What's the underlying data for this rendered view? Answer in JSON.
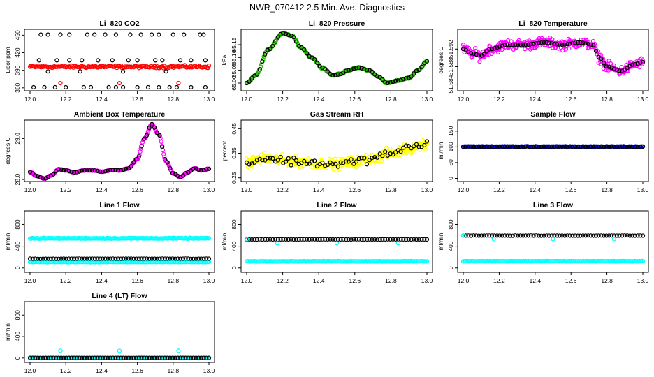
{
  "figure": {
    "title": "NWR_070412  2.5 Min. Ave. Diagnostics"
  },
  "colors": {
    "black": "#000000",
    "red": "#ff0000",
    "green": "#22bb00",
    "magenta": "#ff00ff",
    "yellow": "#ffff00",
    "blue": "#0000cc",
    "cyan": "#00ffff"
  },
  "chart_data": [
    {
      "type": "scatter",
      "title": "Li–820 CO2",
      "ylabel": "Licor ppm",
      "xlim": [
        12.0,
        13.0
      ],
      "ylim": [
        355,
        460
      ],
      "xticks": [
        "12.0",
        "12.2",
        "12.4",
        "12.6",
        "12.8",
        "13.0"
      ],
      "yticks": [
        {
          "v": 360,
          "label": "360"
        },
        {
          "v": 390,
          "label": "390"
        },
        {
          "v": 420,
          "label": "420"
        },
        {
          "v": 450,
          "label": "450"
        }
      ],
      "series": [
        {
          "color": "red",
          "style": "band",
          "base": 396,
          "noise": 3,
          "amp": 0,
          "n": 170
        },
        {
          "color": "black",
          "style": "markers",
          "points": [
            [
              12.06,
              451
            ],
            [
              12.1,
              451
            ],
            [
              12.17,
              451
            ],
            [
              12.22,
              451
            ],
            [
              12.32,
              451
            ],
            [
              12.36,
              451
            ],
            [
              12.42,
              451
            ],
            [
              12.48,
              451
            ],
            [
              12.56,
              451
            ],
            [
              12.62,
              451
            ],
            [
              12.68,
              451
            ],
            [
              12.72,
              451
            ],
            [
              12.8,
              451
            ],
            [
              12.86,
              451
            ],
            [
              12.95,
              451
            ],
            [
              12.97,
              451
            ],
            [
              12.02,
              361
            ],
            [
              12.08,
              361
            ],
            [
              12.14,
              361
            ],
            [
              12.2,
              361
            ],
            [
              12.3,
              361
            ],
            [
              12.34,
              361
            ],
            [
              12.44,
              361
            ],
            [
              12.48,
              361
            ],
            [
              12.52,
              361
            ],
            [
              12.6,
              361
            ],
            [
              12.66,
              361
            ],
            [
              12.72,
              361
            ],
            [
              12.78,
              361
            ],
            [
              12.82,
              361
            ],
            [
              12.9,
              361
            ],
            [
              12.98,
              361
            ],
            [
              12.05,
              407
            ],
            [
              12.15,
              407
            ],
            [
              12.22,
              407
            ],
            [
              12.29,
              407
            ],
            [
              12.38,
              407
            ],
            [
              12.46,
              407
            ],
            [
              12.55,
              407
            ],
            [
              12.6,
              407
            ],
            [
              12.7,
              407
            ],
            [
              12.74,
              407
            ],
            [
              12.84,
              407
            ],
            [
              12.9,
              407
            ],
            [
              12.98,
              407
            ],
            [
              12.1,
              388
            ],
            [
              12.28,
              388
            ],
            [
              12.52,
              388
            ],
            [
              12.76,
              388
            ]
          ]
        },
        {
          "color": "red",
          "style": "markers",
          "points": [
            [
              12.17,
              368
            ],
            [
              12.5,
              368
            ],
            [
              12.83,
              368
            ]
          ]
        }
      ]
    },
    {
      "type": "scatter",
      "title": "Li–820 Pressure",
      "ylabel": "kPa",
      "xlim": [
        12.0,
        13.0
      ],
      "ylim": [
        64.97,
        65.21
      ],
      "xticks": [
        "12.0",
        "12.2",
        "12.4",
        "12.6",
        "12.8",
        "13.0"
      ],
      "yticks": [
        {
          "v": 65.0,
          "label": "65.00"
        },
        {
          "v": 65.05,
          "label": "65.05"
        },
        {
          "v": 65.1,
          "label": "65.10"
        },
        {
          "v": 65.15,
          "label": "65.15"
        }
      ],
      "series": [
        {
          "color": "green",
          "style": "curve",
          "noise": 0.004,
          "n": 220,
          "knots": [
            [
              12.0,
              65.0
            ],
            [
              12.05,
              65.03
            ],
            [
              12.12,
              65.13
            ],
            [
              12.2,
              65.195
            ],
            [
              12.25,
              65.185
            ],
            [
              12.3,
              65.14
            ],
            [
              12.36,
              65.1
            ],
            [
              12.42,
              65.06
            ],
            [
              12.48,
              65.03
            ],
            [
              12.52,
              65.035
            ],
            [
              12.56,
              65.05
            ],
            [
              12.62,
              65.06
            ],
            [
              12.68,
              65.05
            ],
            [
              12.73,
              65.025
            ],
            [
              12.78,
              65.0
            ],
            [
              12.84,
              65.01
            ],
            [
              12.9,
              65.02
            ],
            [
              12.95,
              65.05
            ],
            [
              13.0,
              65.085
            ]
          ]
        },
        {
          "color": "black",
          "style": "onCurve",
          "n": 70
        }
      ]
    },
    {
      "type": "scatter",
      "title": "Li–820 Temperature",
      "ylabel": "degrees C",
      "xlim": [
        12.0,
        13.0
      ],
      "ylim": [
        51.5825,
        51.5965
      ],
      "xticks": [
        "12.0",
        "12.2",
        "12.4",
        "12.6",
        "12.8",
        "13.0"
      ],
      "yticks": [
        {
          "v": 51.584,
          "label": "51.584"
        },
        {
          "v": 51.588,
          "label": "51.588"
        },
        {
          "v": 51.592,
          "label": "51.592"
        }
      ],
      "series": [
        {
          "color": "magenta",
          "style": "curve",
          "noise": 0.0016,
          "n": 330,
          "knots": [
            [
              12.0,
              51.592
            ],
            [
              12.05,
              51.591
            ],
            [
              12.1,
              51.5905
            ],
            [
              12.15,
              51.592
            ],
            [
              12.25,
              51.593
            ],
            [
              12.35,
              51.593
            ],
            [
              12.45,
              51.5935
            ],
            [
              12.55,
              51.593
            ],
            [
              12.65,
              51.5935
            ],
            [
              12.72,
              51.593
            ],
            [
              12.76,
              51.59
            ],
            [
              12.8,
              51.588
            ],
            [
              12.88,
              51.587
            ],
            [
              12.95,
              51.5885
            ],
            [
              13.0,
              51.589
            ]
          ]
        },
        {
          "color": "black",
          "style": "onCurve",
          "n": 70
        }
      ]
    },
    {
      "type": "scatter",
      "title": "Ambient Box Temperature",
      "ylabel": "degrees C",
      "xlim": [
        12.0,
        13.0
      ],
      "ylim": [
        27.95,
        29.45
      ],
      "xticks": [
        "12.0",
        "12.2",
        "12.4",
        "12.6",
        "12.8",
        "13.0"
      ],
      "yticks": [
        {
          "v": 28.0,
          "label": "28.0"
        },
        {
          "v": 29.0,
          "label": "29.0"
        }
      ],
      "series": [
        {
          "color": "magenta",
          "style": "curve",
          "noise": 0.012,
          "n": 230,
          "knots": [
            [
              12.0,
              28.18
            ],
            [
              12.04,
              28.08
            ],
            [
              12.08,
              28.02
            ],
            [
              12.12,
              28.1
            ],
            [
              12.16,
              28.25
            ],
            [
              12.2,
              28.22
            ],
            [
              12.25,
              28.17
            ],
            [
              12.3,
              28.22
            ],
            [
              12.36,
              28.22
            ],
            [
              12.4,
              28.19
            ],
            [
              12.46,
              28.23
            ],
            [
              12.5,
              28.22
            ],
            [
              12.55,
              28.27
            ],
            [
              12.6,
              28.5
            ],
            [
              12.64,
              29.0
            ],
            [
              12.68,
              29.35
            ],
            [
              12.72,
              29.1
            ],
            [
              12.76,
              28.45
            ],
            [
              12.8,
              28.15
            ],
            [
              12.84,
              28.06
            ],
            [
              12.88,
              28.17
            ],
            [
              12.92,
              28.27
            ],
            [
              12.96,
              28.22
            ],
            [
              13.0,
              28.26
            ]
          ]
        },
        {
          "color": "black",
          "style": "onCurve",
          "n": 70
        }
      ]
    },
    {
      "type": "scatter",
      "title": "Gas Stream RH",
      "ylabel": "percent",
      "xlim": [
        12.0,
        13.0
      ],
      "ylim": [
        0.235,
        0.485
      ],
      "xticks": [
        "12.0",
        "12.2",
        "12.4",
        "12.6",
        "12.8",
        "13.0"
      ],
      "yticks": [
        {
          "v": 0.25,
          "label": "0.25"
        },
        {
          "v": 0.35,
          "label": "0.35"
        },
        {
          "v": 0.45,
          "label": "0.45"
        }
      ],
      "series": [
        {
          "color": "yellow",
          "style": "curve",
          "noise": 0.03,
          "n": 300,
          "knots": [
            [
              12.0,
              0.31
            ],
            [
              12.1,
              0.33
            ],
            [
              12.2,
              0.32
            ],
            [
              12.3,
              0.315
            ],
            [
              12.4,
              0.31
            ],
            [
              12.5,
              0.305
            ],
            [
              12.6,
              0.315
            ],
            [
              12.7,
              0.33
            ],
            [
              12.8,
              0.35
            ],
            [
              12.9,
              0.37
            ],
            [
              13.0,
              0.39
            ]
          ]
        },
        {
          "color": "black",
          "style": "onCurve",
          "n": 70,
          "noise": 0.025
        }
      ]
    },
    {
      "type": "scatter",
      "title": "Sample Flow",
      "ylabel": "ml/min",
      "xlim": [
        12.0,
        13.0
      ],
      "ylim": [
        -10,
        185
      ],
      "xticks": [
        "12.0",
        "12.2",
        "12.4",
        "12.6",
        "12.8",
        "13.0"
      ],
      "yticks": [
        {
          "v": 0,
          "label": "0"
        },
        {
          "v": 50,
          "label": "50"
        },
        {
          "v": 100,
          "label": "100"
        },
        {
          "v": 150,
          "label": "150"
        }
      ],
      "series": [
        {
          "color": "blue",
          "style": "band",
          "base": 101,
          "noise": 1.5,
          "n": 170
        },
        {
          "color": "black",
          "style": "band",
          "base": 101,
          "noise": 1.2,
          "n": 70
        }
      ]
    },
    {
      "type": "scatter",
      "title": "Line 1 Flow",
      "ylabel": "ml/min",
      "xlim": [
        12.0,
        13.0
      ],
      "ylim": [
        -80,
        1050
      ],
      "xticks": [
        "12.0",
        "12.2",
        "12.4",
        "12.6",
        "12.8",
        "13.0"
      ],
      "yticks": [
        {
          "v": 0,
          "label": "0"
        },
        {
          "v": 400,
          "label": "400"
        },
        {
          "v": 800,
          "label": "800"
        }
      ],
      "series": [
        {
          "color": "cyan",
          "style": "band",
          "base": 545,
          "noise": 12,
          "n": 170
        },
        {
          "color": "cyan",
          "style": "band",
          "base": 110,
          "noise": 6,
          "n": 150
        },
        {
          "color": "black",
          "style": "band",
          "base": 170,
          "noise": 4,
          "n": 70
        }
      ]
    },
    {
      "type": "scatter",
      "title": "Line 2 Flow",
      "ylabel": "ml/min",
      "xlim": [
        12.0,
        13.0
      ],
      "ylim": [
        -80,
        1050
      ],
      "xticks": [
        "12.0",
        "12.2",
        "12.4",
        "12.6",
        "12.8",
        "13.0"
      ],
      "yticks": [
        {
          "v": 0,
          "label": "0"
        },
        {
          "v": 400,
          "label": "400"
        },
        {
          "v": 800,
          "label": "800"
        }
      ],
      "series": [
        {
          "color": "cyan",
          "style": "band",
          "base": 122,
          "noise": 5,
          "n": 170
        },
        {
          "color": "black",
          "style": "band",
          "base": 525,
          "noise": 4,
          "n": 70
        },
        {
          "color": "cyan",
          "style": "markers",
          "points": [
            [
              12.0,
              530
            ],
            [
              12.17,
              455
            ],
            [
              12.5,
              455
            ],
            [
              12.84,
              455
            ]
          ]
        }
      ]
    },
    {
      "type": "scatter",
      "title": "Line 3 Flow",
      "ylabel": "ml/min",
      "xlim": [
        12.0,
        13.0
      ],
      "ylim": [
        -80,
        1050
      ],
      "xticks": [
        "12.0",
        "12.2",
        "12.4",
        "12.6",
        "12.8",
        "13.0"
      ],
      "yticks": [
        {
          "v": 0,
          "label": "0"
        },
        {
          "v": 400,
          "label": "400"
        },
        {
          "v": 800,
          "label": "800"
        }
      ],
      "series": [
        {
          "color": "cyan",
          "style": "band",
          "base": 123,
          "noise": 5,
          "n": 170
        },
        {
          "color": "black",
          "style": "band",
          "base": 595,
          "noise": 4,
          "n": 70
        },
        {
          "color": "cyan",
          "style": "markers",
          "points": [
            [
              12.0,
              595
            ],
            [
              12.17,
              530
            ],
            [
              12.5,
              530
            ],
            [
              12.84,
              530
            ]
          ]
        }
      ]
    },
    {
      "type": "scatter",
      "title": "Line 4 (LT) Flow",
      "ylabel": "ml/min",
      "xlim": [
        12.0,
        13.0
      ],
      "ylim": [
        -80,
        1050
      ],
      "xticks": [
        "12.0",
        "12.2",
        "12.4",
        "12.6",
        "12.8",
        "13.0"
      ],
      "yticks": [
        {
          "v": 0,
          "label": "0"
        },
        {
          "v": 400,
          "label": "400"
        },
        {
          "v": 800,
          "label": "800"
        }
      ],
      "series": [
        {
          "color": "cyan",
          "style": "band",
          "base": 3,
          "noise": 2,
          "n": 170
        },
        {
          "color": "black",
          "style": "band",
          "base": 3,
          "noise": 1,
          "n": 70
        },
        {
          "color": "cyan",
          "style": "markers",
          "points": [
            [
              12.17,
              135
            ],
            [
              12.5,
              135
            ],
            [
              12.83,
              135
            ]
          ]
        }
      ]
    }
  ]
}
